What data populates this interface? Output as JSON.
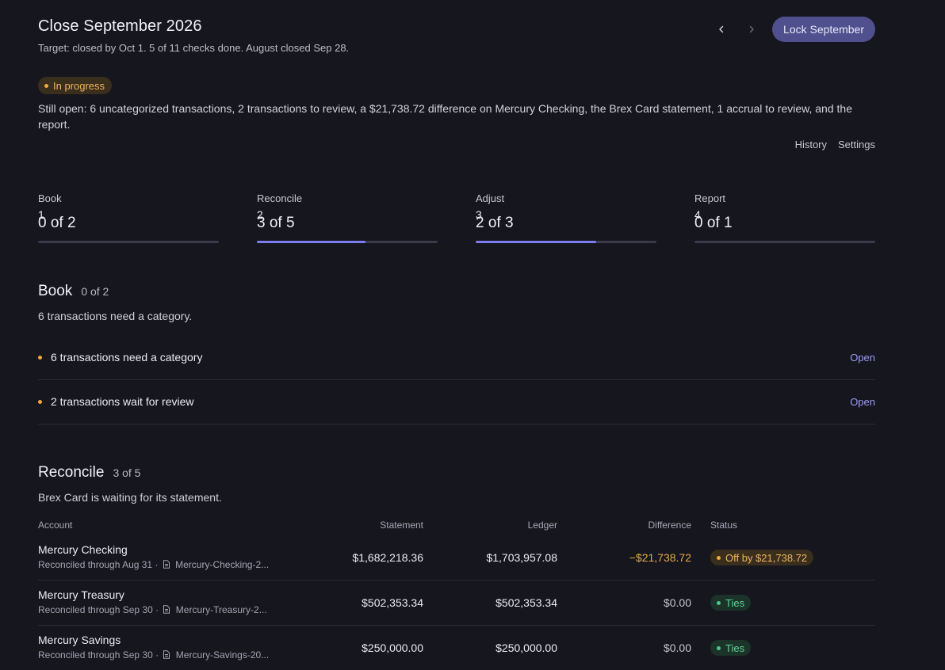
{
  "header": {
    "title": "Close September 2026",
    "subtitle": "Target: closed by Oct 1. 5 of 11 checks done. August closed Sep 28.",
    "prev_icon": "chevron-left-icon",
    "next_icon": "chevron-right-icon",
    "lock_label": "Lock September"
  },
  "status_badge": "In progress",
  "still_open": "Still open: 6 uncategorized transactions, 2 transactions to review, a $21,738.72 difference on Mercury Checking, the Brex Card statement, 1 accrual to review, and the report.",
  "links": {
    "history": "History",
    "settings": "Settings"
  },
  "steps": [
    {
      "num": "1",
      "label": "Book",
      "value": "0 of 2",
      "progress": 0
    },
    {
      "num": "2",
      "label": "Reconcile",
      "value": "3 of 5",
      "progress": 0.6
    },
    {
      "num": "3",
      "label": "Adjust",
      "value": "2 of 3",
      "progress": 0.667
    },
    {
      "num": "4",
      "label": "Report",
      "value": "0 of 1",
      "progress": 0
    }
  ],
  "book": {
    "title": "Book",
    "count": "0 of 2",
    "desc": "6 transactions need a category.",
    "tasks": [
      {
        "label": "6 transactions need a category",
        "action": "Open"
      },
      {
        "label": "2 transactions wait for review",
        "action": "Open"
      }
    ]
  },
  "reconcile": {
    "title": "Reconcile",
    "count": "3 of 5",
    "desc": "Brex Card is waiting for its statement.",
    "columns": {
      "account": "Account",
      "statement": "Statement",
      "ledger": "Ledger",
      "difference": "Difference",
      "status": "Status"
    },
    "rows": [
      {
        "account": "Mercury Checking",
        "through": "Reconciled through Aug 31 ·",
        "file": "Mercury-Checking-2...",
        "statement": "$1,682,218.36",
        "ledger": "$1,703,957.08",
        "difference": "−$21,738.72",
        "status": "Off by $21,738.72"
      },
      {
        "account": "Mercury Treasury",
        "through": "Reconciled through Sep 30 ·",
        "file": "Mercury-Treasury-2...",
        "statement": "$502,353.34",
        "ledger": "$502,353.34",
        "difference": "$0.00",
        "status": "Ties"
      },
      {
        "account": "Mercury Savings",
        "through": "Reconciled through Sep 30 ·",
        "file": "Mercury-Savings-20...",
        "statement": "$250,000.00",
        "ledger": "$250,000.00",
        "difference": "$0.00",
        "status": "Ties"
      }
    ]
  }
}
